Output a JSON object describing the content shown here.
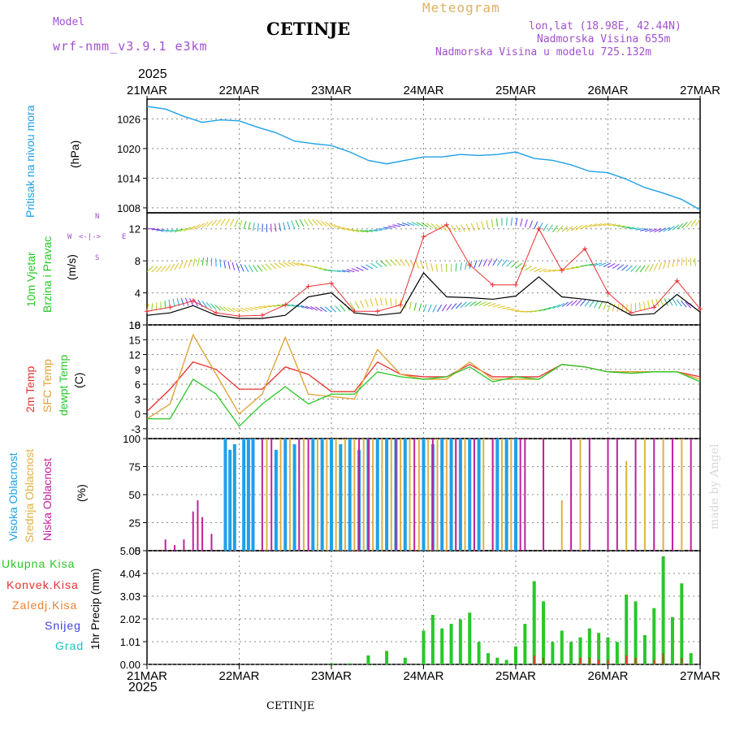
{
  "header": {
    "model_label": "Model",
    "model_name": "wrf-nmm_v3.9.1 e3km",
    "station": "CETINJE",
    "product": "Meteogram",
    "coords": "lon,lat (18.98E, 42.44N)",
    "elevation": "Nadmorska Visina 655m",
    "model_elevation": "Nadmorska Visina u modelu 725.132m",
    "year_top": "2025",
    "year_bottom": "2025",
    "footer_station": "CETINJE",
    "watermark": "made by Angel"
  },
  "colors": {
    "pressure": "#1ea0e8",
    "temp2m": "#e83030",
    "sfc": "#e0a030",
    "dewpt": "#28c828",
    "high_cloud": "#1ea0e8",
    "mid_cloud": "#e0b040",
    "low_cloud": "#c0209c",
    "total_precip": "#28c828",
    "conv_precip": "#e83030",
    "frozen": "#f08030",
    "snow": "#4040e0",
    "grad": "#20c0c0"
  },
  "chart_data": [
    {
      "type": "line",
      "name": "pressure",
      "ylabel_left": "Pritisak na nivou mora",
      "unit": "(hPa)",
      "ylim": [
        1007,
        1030
      ],
      "yticks": [
        1008,
        1014,
        1020,
        1026
      ],
      "x": [
        0,
        0.2,
        0.4,
        0.6,
        0.8,
        1.0,
        1.2,
        1.4,
        1.6,
        1.8,
        2.0,
        2.2,
        2.4,
        2.6,
        2.8,
        3.0,
        3.2,
        3.4,
        3.6,
        3.8,
        4.0,
        4.2,
        4.4,
        4.6,
        4.8,
        5.0,
        5.2,
        5.4,
        5.6,
        5.8,
        6.0
      ],
      "values": [
        1028.5,
        1028.0,
        1026.5,
        1025.3,
        1025.8,
        1025.6,
        1024.3,
        1023.2,
        1021.5,
        1021.0,
        1020.6,
        1019.3,
        1017.6,
        1016.9,
        1017.6,
        1018.3,
        1018.3,
        1018.8,
        1018.6,
        1018.8,
        1019.3,
        1018.0,
        1017.6,
        1016.7,
        1015.4,
        1015.1,
        1013.8,
        1012.1,
        1011.0,
        1009.7,
        1007.6
      ]
    },
    {
      "type": "line",
      "name": "wind",
      "ylabel_left": "10m Vjetar",
      "ylabel_left2": "Brzina i Pravac",
      "unit": "(m/s)",
      "compass": [
        "N",
        "W",
        "E",
        "S"
      ],
      "ylim": [
        0,
        14
      ],
      "yticks": [
        0,
        4,
        8,
        12
      ],
      "x": [
        0,
        0.25,
        0.5,
        0.75,
        1.0,
        1.25,
        1.5,
        1.75,
        2.0,
        2.25,
        2.5,
        2.75,
        3.0,
        3.25,
        3.5,
        3.75,
        4.0,
        4.25,
        4.5,
        4.75,
        5.0,
        5.25,
        5.5,
        5.75,
        6.0
      ],
      "speed": [
        1.2,
        1.5,
        2.4,
        1.2,
        0.8,
        0.8,
        1.2,
        3.5,
        4.0,
        1.5,
        1.2,
        1.5,
        6.5,
        3.5,
        3.4,
        3.2,
        3.6,
        6.0,
        3.5,
        3.2,
        2.8,
        1.2,
        1.4,
        3.8,
        1.6
      ],
      "gust": [
        1.7,
        2.2,
        3.0,
        1.5,
        1.1,
        1.2,
        2.5,
        4.8,
        5.2,
        1.7,
        1.7,
        2.5,
        11.0,
        12.5,
        7.5,
        5.0,
        5.0,
        12.0,
        6.8,
        9.5,
        4.0,
        1.5,
        2.2,
        5.5,
        2.0
      ]
    },
    {
      "type": "line",
      "name": "temperature",
      "ylabel_left": "2m Temp",
      "ylabel_left2": "SFC Temp",
      "ylabel_left3": "dewpt Temp",
      "unit": "(C)",
      "ylim": [
        -5,
        18
      ],
      "yticks": [
        -3,
        0,
        3,
        6,
        9,
        12,
        15,
        18
      ],
      "x": [
        0,
        0.25,
        0.5,
        0.75,
        1.0,
        1.25,
        1.5,
        1.75,
        2.0,
        2.25,
        2.5,
        2.75,
        3.0,
        3.25,
        3.5,
        3.75,
        4.0,
        4.25,
        4.5,
        4.75,
        5.0,
        5.25,
        5.5,
        5.75,
        6.0
      ],
      "series": [
        {
          "name": "2m Temp",
          "values": [
            0.5,
            5,
            10.5,
            9,
            5,
            5,
            9.5,
            8,
            4.5,
            4.5,
            10.5,
            8,
            7.5,
            7.5,
            10,
            7.5,
            7.5,
            7.5,
            10,
            9.5,
            8.5,
            8.5,
            8.5,
            8.5,
            7.5
          ]
        },
        {
          "name": "SFC Temp",
          "values": [
            -1,
            2,
            16,
            8,
            0,
            4,
            15.5,
            4,
            3.5,
            3,
            13,
            8,
            7,
            7,
            10.5,
            7,
            7,
            7,
            10,
            9.5,
            8.5,
            8.5,
            8.5,
            8.5,
            7
          ]
        },
        {
          "name": "dewpt Temp",
          "values": [
            -1,
            -1,
            7,
            4,
            -2.5,
            2,
            5.5,
            2,
            4,
            4,
            8.5,
            7.5,
            7,
            7.5,
            9.5,
            6.5,
            7.5,
            7,
            10,
            9.5,
            8.5,
            8.2,
            8.5,
            8.5,
            6.5
          ]
        }
      ]
    },
    {
      "type": "bar",
      "name": "cloud",
      "ylabel_left": "Visoka Oblacnost",
      "ylabel_left2": "Srednja Oblacnost",
      "ylabel_left3": "Niska Oblacnost",
      "unit": "(%)",
      "ylim": [
        0,
        100
      ],
      "yticks": [
        0,
        25,
        50,
        75,
        100
      ],
      "series": [
        {
          "name": "Visoka Oblacnost",
          "x": [
            0.85,
            0.9,
            0.95,
            1.05,
            1.1,
            1.15,
            1.4,
            1.5,
            1.6,
            1.8,
            1.9,
            2.0,
            2.1,
            2.2,
            2.3,
            2.4,
            2.5,
            2.6,
            2.7,
            2.8,
            3.0,
            3.1,
            3.2,
            3.3,
            3.4,
            3.5,
            3.6,
            3.8,
            3.9,
            4.0
          ],
          "values": [
            100,
            90,
            95,
            100,
            100,
            100,
            90,
            100,
            95,
            100,
            100,
            100,
            95,
            100,
            90,
            100,
            100,
            100,
            100,
            100,
            100,
            95,
            100,
            100,
            100,
            100,
            100,
            100,
            100,
            100
          ]
        },
        {
          "name": "Srednja Oblacnost",
          "x": [
            1.3,
            1.45,
            1.55,
            1.7,
            1.85,
            1.95,
            2.05,
            2.15,
            2.25,
            2.35,
            2.45,
            2.55,
            2.65,
            2.75,
            2.85,
            2.95,
            3.05,
            3.15,
            3.25,
            3.35,
            3.45,
            3.55,
            3.65,
            3.75,
            3.85,
            3.95,
            4.5,
            4.7,
            5.2,
            5.4,
            5.6,
            5.8
          ],
          "values": [
            100,
            100,
            100,
            100,
            100,
            100,
            100,
            100,
            100,
            100,
            100,
            100,
            100,
            100,
            100,
            100,
            100,
            100,
            100,
            100,
            100,
            100,
            100,
            100,
            100,
            100,
            45,
            100,
            80,
            100,
            100,
            100
          ]
        },
        {
          "name": "Niska Oblacnost",
          "x": [
            0.2,
            0.3,
            0.4,
            0.5,
            0.55,
            0.6,
            0.7,
            1.25,
            1.35,
            1.65,
            1.75,
            2.3,
            2.4,
            2.7,
            2.9,
            3.1,
            3.35,
            3.55,
            3.75,
            4.05,
            4.1,
            4.3,
            4.6,
            4.8,
            5.0,
            5.1,
            5.3,
            5.5,
            5.7,
            5.9
          ],
          "values": [
            10,
            5,
            10,
            35,
            45,
            30,
            15,
            100,
            100,
            100,
            100,
            100,
            100,
            100,
            100,
            100,
            100,
            100,
            100,
            100,
            100,
            100,
            100,
            100,
            100,
            100,
            100,
            100,
            100,
            100
          ]
        }
      ]
    },
    {
      "type": "bar",
      "name": "precipitation",
      "ylabel_left": "1hr Precip (mm)",
      "legend": [
        "Ukupna Kisa",
        "Konvek.Kisa",
        "Zaledj.Kisa",
        "Snijeg",
        "Grad"
      ],
      "ylim": [
        0,
        5.05
      ],
      "yticks": [
        0,
        1.01,
        2.02,
        3.03,
        4.04,
        5.05
      ],
      "x_day": [
        2.0,
        2.2,
        2.4,
        2.6,
        2.8,
        3.0,
        3.1,
        3.2,
        3.3,
        3.4,
        3.5,
        3.6,
        3.7,
        3.8,
        3.9,
        4.0,
        4.1,
        4.2,
        4.3,
        4.4,
        4.5,
        4.6,
        4.7,
        4.8,
        4.9,
        5.0,
        5.1,
        5.2,
        5.3,
        5.4,
        5.5,
        5.6,
        5.7,
        5.8,
        5.9
      ],
      "values": [
        0.05,
        0.05,
        0.4,
        0.6,
        0.3,
        1.5,
        2.2,
        1.6,
        1.8,
        2.0,
        2.3,
        1.0,
        0.5,
        0.3,
        0.2,
        0.8,
        1.8,
        3.7,
        2.8,
        1.0,
        1.5,
        1.0,
        1.2,
        1.6,
        1.4,
        1.2,
        1.0,
        3.1,
        2.8,
        1.3,
        2.5,
        4.8,
        2.1,
        3.6,
        0.5
      ],
      "conv_values": [
        0,
        0,
        0,
        0,
        0,
        0,
        0,
        0,
        0,
        0,
        0,
        0,
        0,
        0,
        0,
        0,
        0,
        0.4,
        0.3,
        0,
        0,
        0,
        0.3,
        0.3,
        0.2,
        0.2,
        0,
        0.4,
        0.3,
        0,
        0.2,
        0.5,
        0,
        0.3,
        0
      ]
    }
  ],
  "time_axis": {
    "labels_top": [
      "21MAR",
      "22MAR",
      "23MAR",
      "24MAR",
      "25MAR",
      "26MAR",
      "27MAR"
    ],
    "labels_bottom": [
      "21MAR",
      "22MAR",
      "23MAR",
      "24MAR",
      "25MAR",
      "26MAR",
      "27MAR"
    ]
  },
  "labels": {
    "pressure_label": "Pritisak na nivou mora",
    "pressure_unit": "(hPa)",
    "wind_label_1": "10m Vjetar",
    "wind_label_2": "Brzina i Pravac",
    "wind_unit": "(m/s)",
    "temp_label_1": "2m Temp",
    "temp_label_2": "SFC Temp",
    "temp_label_3": "dewpt Temp",
    "temp_unit": "(C)",
    "cloud_label_1": "Visoka Oblacnost",
    "cloud_label_2": "Srednja Oblacnost",
    "cloud_label_3": "Niska Oblacnost",
    "cloud_unit": "(%)",
    "precip_label": "1hr Precip (mm)",
    "legend_total": "Ukupna Kisa",
    "legend_conv": "Konvek.Kisa",
    "legend_frozen": "Zaledj.Kisa",
    "legend_snow": "Snijeg",
    "legend_grad": "Grad",
    "compass_n": "N",
    "compass_w": "W",
    "compass_e": "E",
    "compass_s": "S"
  }
}
